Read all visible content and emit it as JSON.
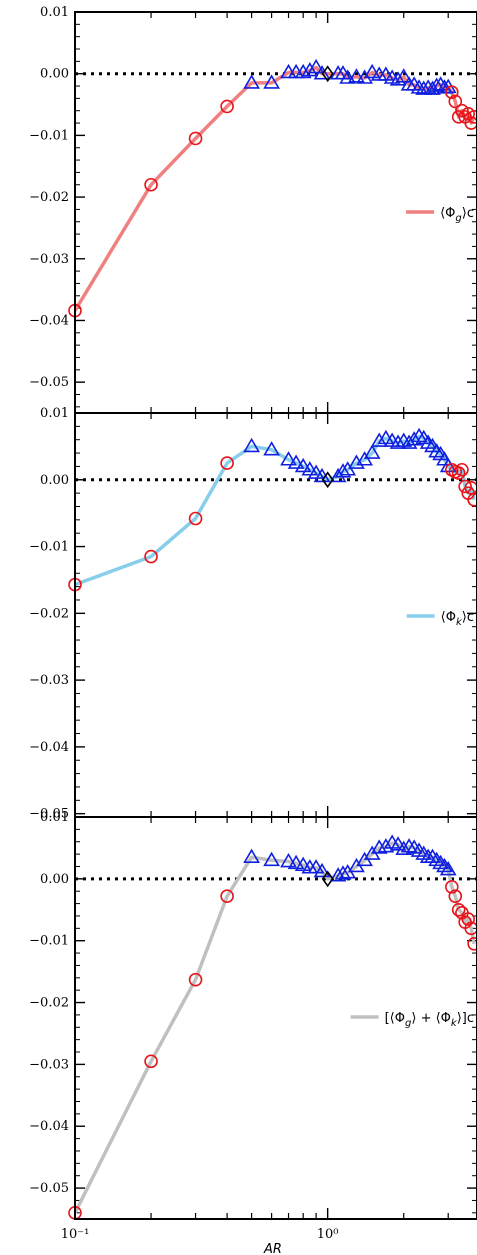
{
  "chart_data": [
    {
      "type": "line",
      "panel": "top",
      "legend": "⟨Φ_g⟩c",
      "legend_placement": "center-right",
      "line_color": "#f08080",
      "ylim": [
        -0.055,
        0.01
      ],
      "yticks": [
        0.01,
        0.0,
        -0.01,
        -0.02,
        -0.03,
        -0.04,
        -0.05
      ],
      "ytick_labels": [
        "0.01",
        "0.00",
        "−0.01",
        "−0.02",
        "−0.03",
        "−0.04",
        "−0.05"
      ],
      "zero_line": "dotted",
      "series": [
        {
          "marker": "circle",
          "color": "#e8151b",
          "x": [
            0.1,
            0.2,
            0.3,
            0.4
          ],
          "y": [
            -0.0384,
            -0.018,
            -0.0105,
            -0.0053
          ]
        },
        {
          "marker": "triangle",
          "color": "#1020e0",
          "x": [
            0.5,
            0.6,
            0.7,
            0.75,
            0.8,
            0.85,
            0.9,
            0.95,
            1.1,
            1.15,
            1.2,
            1.3,
            1.4,
            1.5,
            1.6,
            1.7,
            1.8,
            1.9,
            2.0,
            2.1,
            2.2,
            2.3,
            2.4,
            2.5,
            2.6,
            2.7,
            2.8,
            2.9,
            3.0
          ],
          "y": [
            -0.0015,
            -0.0015,
            0.0002,
            0.0002,
            0.0002,
            0.0005,
            0.001,
            0.0,
            0.0,
            0.0,
            -0.0007,
            -0.0005,
            -0.0007,
            0.0002,
            -0.0002,
            -0.0002,
            -0.0007,
            -0.001,
            -0.0005,
            -0.0018,
            -0.0018,
            -0.0023,
            -0.0025,
            -0.0023,
            -0.0025,
            -0.002,
            -0.0018,
            -0.0023,
            -0.0022
          ]
        },
        {
          "marker": "circle",
          "color": "#e8151b",
          "x": [
            3.1,
            3.2,
            3.3,
            3.4,
            3.5,
            3.6,
            3.7,
            3.8
          ],
          "y": [
            -0.003,
            -0.0045,
            -0.007,
            -0.006,
            -0.007,
            -0.0065,
            -0.008,
            -0.007
          ]
        },
        {
          "marker": "diamond",
          "color": "#000000",
          "x": [
            1.0
          ],
          "y": [
            0.0
          ]
        }
      ]
    },
    {
      "type": "line",
      "panel": "middle",
      "legend": "⟨Φ_k⟩c",
      "legend_placement": "center-right",
      "line_color": "#87ceeb",
      "ylim": [
        -0.0505,
        0.01
      ],
      "yticks": [
        0.01,
        0.0,
        -0.01,
        -0.02,
        -0.03,
        -0.04,
        -0.05
      ],
      "ytick_labels": [
        "0.01",
        "0.00",
        "−0.01",
        "−0.02",
        "−0.03",
        "−0.04",
        "−0.05"
      ],
      "zero_line": "dotted",
      "series": [
        {
          "marker": "circle",
          "color": "#e8151b",
          "x": [
            0.1,
            0.2,
            0.3,
            0.4
          ],
          "y": [
            -0.0157,
            -0.0115,
            -0.0058,
            0.0025
          ]
        },
        {
          "marker": "triangle",
          "color": "#1020e0",
          "x": [
            0.5,
            0.6,
            0.7,
            0.75,
            0.8,
            0.85,
            0.9,
            0.95,
            1.1,
            1.15,
            1.2,
            1.3,
            1.4,
            1.5,
            1.6,
            1.7,
            1.8,
            1.9,
            2.0,
            2.1,
            2.2,
            2.3,
            2.4,
            2.5,
            2.6,
            2.7,
            2.8,
            2.9,
            3.0
          ],
          "y": [
            0.005,
            0.0045,
            0.003,
            0.0025,
            0.002,
            0.0015,
            0.001,
            0.0005,
            0.0005,
            0.0012,
            0.0015,
            0.0025,
            0.003,
            0.004,
            0.0058,
            0.0062,
            0.0058,
            0.0055,
            0.0058,
            0.0055,
            0.006,
            0.0065,
            0.0062,
            0.0055,
            0.005,
            0.0042,
            0.0038,
            0.003,
            0.002
          ]
        },
        {
          "marker": "circle",
          "color": "#e8151b",
          "x": [
            3.1,
            3.2,
            3.3,
            3.4,
            3.5,
            3.6,
            3.7,
            3.8
          ],
          "y": [
            0.0015,
            0.0012,
            0.001,
            0.0015,
            -0.001,
            -0.002,
            -0.0012,
            -0.003
          ]
        },
        {
          "marker": "diamond",
          "color": "#000000",
          "x": [
            1.0
          ],
          "y": [
            0.0
          ]
        }
      ]
    },
    {
      "type": "line",
      "panel": "bottom",
      "legend": "[⟨Φ_g⟩ + ⟨Φ_k⟩]c",
      "legend_placement": "center-right",
      "line_color": "#c0c0c0",
      "ylim": [
        -0.055,
        0.01
      ],
      "yticks": [
        0.01,
        0.0,
        -0.01,
        -0.02,
        -0.03,
        -0.04,
        -0.05
      ],
      "ytick_labels": [
        "0.01",
        "0.00",
        "−0.01",
        "−0.02",
        "−0.03",
        "−0.04",
        "−0.05"
      ],
      "zero_line": "dotted",
      "xlabel": "AR",
      "xscale": "log",
      "xlim": [
        0.1,
        3.9
      ],
      "xtick_labels": [
        "10⁻¹",
        "10⁰"
      ],
      "series": [
        {
          "marker": "circle",
          "color": "#e8151b",
          "x": [
            0.1,
            0.2,
            0.3,
            0.4
          ],
          "y": [
            -0.054,
            -0.0295,
            -0.0163,
            -0.0028
          ]
        },
        {
          "marker": "triangle",
          "color": "#1020e0",
          "x": [
            0.5,
            0.6,
            0.7,
            0.75,
            0.8,
            0.85,
            0.9,
            0.95,
            1.1,
            1.15,
            1.2,
            1.3,
            1.4,
            1.5,
            1.6,
            1.7,
            1.8,
            1.9,
            2.0,
            2.1,
            2.2,
            2.3,
            2.4,
            2.5,
            2.6,
            2.7,
            2.8,
            2.9,
            3.0
          ],
          "y": [
            0.0035,
            0.003,
            0.0028,
            0.0025,
            0.0022,
            0.0018,
            0.0018,
            0.0012,
            0.0005,
            0.0008,
            0.001,
            0.002,
            0.003,
            0.004,
            0.005,
            0.0052,
            0.0058,
            0.0055,
            0.0048,
            0.0052,
            0.005,
            0.0045,
            0.004,
            0.0035,
            0.0035,
            0.003,
            0.0025,
            0.002,
            0.0015
          ]
        },
        {
          "marker": "circle",
          "color": "#e8151b",
          "x": [
            3.1,
            3.2,
            3.3,
            3.4,
            3.5,
            3.6,
            3.7,
            3.8
          ],
          "y": [
            -0.0013,
            -0.0028,
            -0.005,
            -0.0055,
            -0.007,
            -0.0065,
            -0.008,
            -0.0105
          ]
        },
        {
          "marker": "diamond",
          "color": "#000000",
          "x": [
            1.0
          ],
          "y": [
            0.0
          ]
        }
      ]
    }
  ]
}
